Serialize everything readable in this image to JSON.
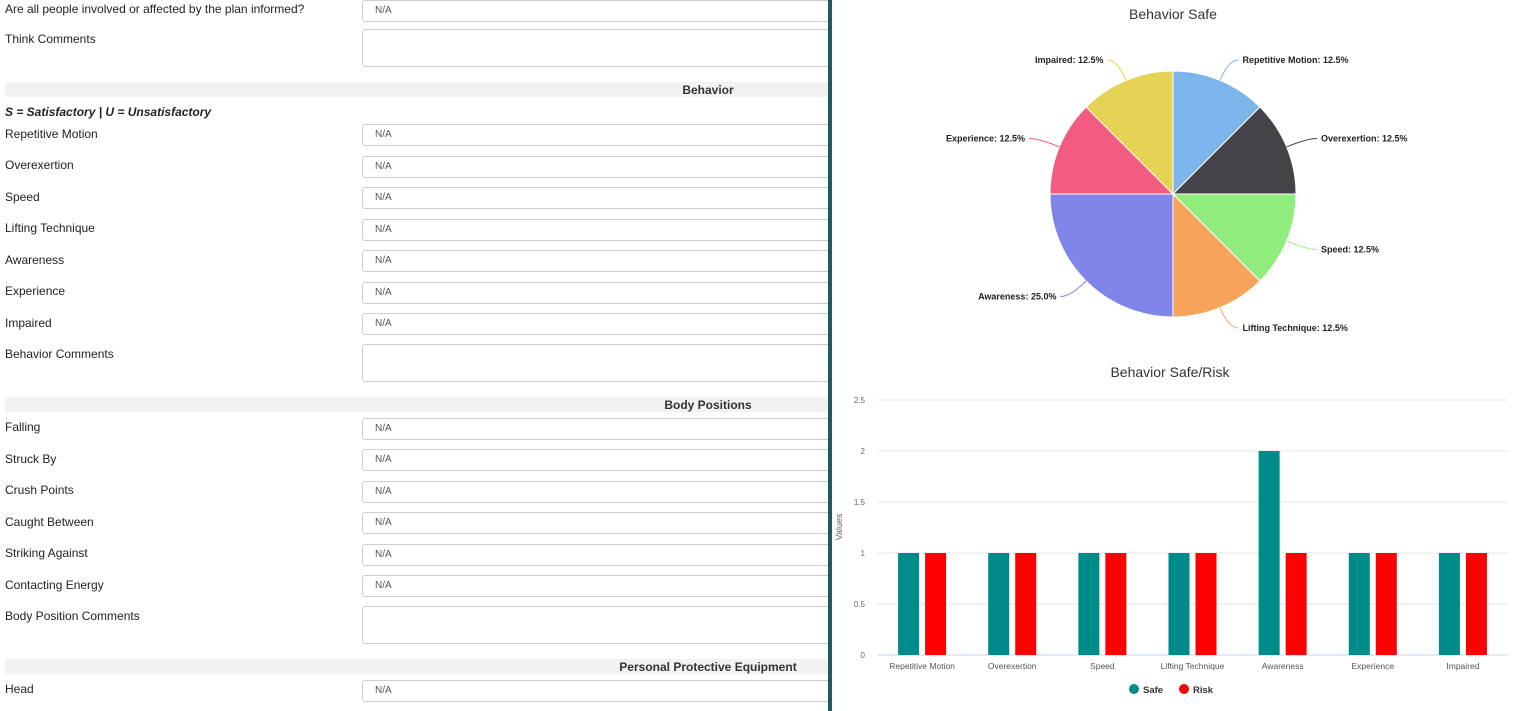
{
  "form": {
    "top_question": {
      "label": "Are all people involved or affected by the plan informed?",
      "value": "N/A"
    },
    "think_comments_label": "Think Comments",
    "behavior": {
      "title": "Behavior",
      "scale_note": "S = Satisfactory | U = Unsatisfactory",
      "items": [
        {
          "label": "Repetitive Motion",
          "value": "N/A"
        },
        {
          "label": "Overexertion",
          "value": "N/A"
        },
        {
          "label": "Speed",
          "value": "N/A"
        },
        {
          "label": "Lifting Technique",
          "value": "N/A"
        },
        {
          "label": "Awareness",
          "value": "N/A"
        },
        {
          "label": "Experience",
          "value": "N/A"
        },
        {
          "label": "Impaired",
          "value": "N/A"
        }
      ],
      "comments_label": "Behavior Comments"
    },
    "body_positions": {
      "title": "Body Positions",
      "items": [
        {
          "label": "Falling",
          "value": "N/A"
        },
        {
          "label": "Struck By",
          "value": "N/A"
        },
        {
          "label": "Crush Points",
          "value": "N/A"
        },
        {
          "label": "Caught Between",
          "value": "N/A"
        },
        {
          "label": "Striking Against",
          "value": "N/A"
        },
        {
          "label": "Contacting Energy",
          "value": "N/A"
        }
      ],
      "comments_label": "Body Position Comments"
    },
    "ppe": {
      "title": "Personal Protective Equipment",
      "items": [
        {
          "label": "Head",
          "value": "N/A"
        }
      ]
    }
  },
  "chart_data": [
    {
      "type": "pie",
      "title": "Behavior Safe",
      "slices": [
        {
          "label": "Repetitive Motion: 12.5%",
          "value": 12.5,
          "color": "#7cb5ec"
        },
        {
          "label": "Overexertion: 12.5%",
          "value": 12.5,
          "color": "#434348"
        },
        {
          "label": "Speed: 12.5%",
          "value": 12.5,
          "color": "#90ed7d"
        },
        {
          "label": "Lifting Technique: 12.5%",
          "value": 12.5,
          "color": "#f7a35c"
        },
        {
          "label": "Awareness: 25.0%",
          "value": 25.0,
          "color": "#8085e9"
        },
        {
          "label": "Experience: 12.5%",
          "value": 12.5,
          "color": "#f15c80"
        },
        {
          "label": "Impaired: 12.5%",
          "value": 12.5,
          "color": "#e4d354"
        }
      ]
    },
    {
      "type": "bar",
      "title": "Behavior Safe/Risk",
      "ylabel": "Values",
      "ylim": [
        0,
        2.5
      ],
      "yticks": [
        "0",
        "0.5",
        "1",
        "1.5",
        "2",
        "2.5"
      ],
      "categories": [
        "Repetitive Motion",
        "Overexertion",
        "Speed",
        "Lifting Technique",
        "Awareness",
        "Experience",
        "Impaired"
      ],
      "series": [
        {
          "name": "Safe",
          "color": "#008b8b",
          "values": [
            1,
            1,
            1,
            1,
            2,
            1,
            1
          ]
        },
        {
          "name": "Risk",
          "color": "#ff0000",
          "values": [
            1,
            1,
            1,
            1,
            1,
            1,
            1
          ]
        }
      ],
      "legend": "bottom-center"
    }
  ]
}
